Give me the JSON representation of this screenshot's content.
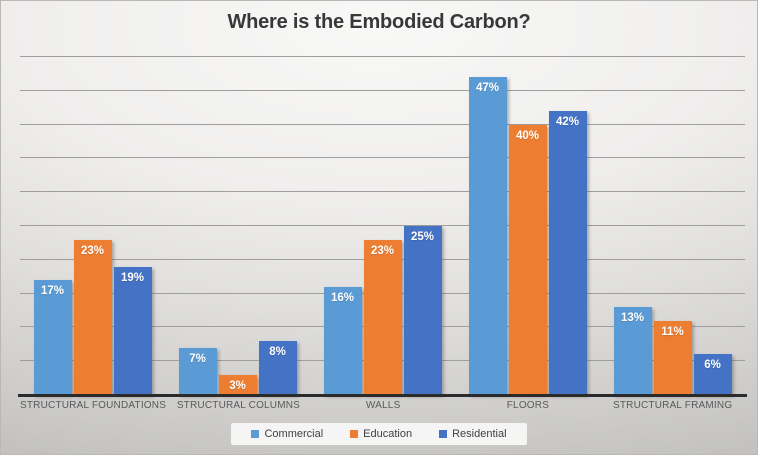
{
  "title": "Where is the Embodied Carbon?",
  "chart_data": {
    "type": "bar",
    "title": "Where is the Embodied Carbon?",
    "categories": [
      "STRUCTURAL FOUNDATIONS",
      "STRUCTURAL COLUMNS",
      "WALLS",
      "FLOORS",
      "STRUCTURAL FRAMING"
    ],
    "series": [
      {
        "name": "Commercial",
        "color": "#5B9BD5",
        "values": [
          17,
          7,
          16,
          47,
          13
        ]
      },
      {
        "name": "Education",
        "color": "#ED7D31",
        "values": [
          23,
          3,
          23,
          40,
          11
        ]
      },
      {
        "name": "Residential",
        "color": "#4472C4",
        "values": [
          19,
          8,
          25,
          42,
          6
        ]
      }
    ],
    "data_labels": [
      "17%",
      "7%",
      "16%",
      "47%",
      "13%",
      "23%",
      "3%",
      "23%",
      "40%",
      "11%",
      "19%",
      "8%",
      "25%",
      "42%",
      "6%"
    ],
    "value_suffix": "%",
    "xlabel": "",
    "ylabel": "",
    "ylim": [
      0,
      50
    ],
    "gridline_step": 5,
    "grid": true,
    "y_axis_labels_visible": false,
    "legend_position": "bottom",
    "legend": [
      "Commercial",
      "Education",
      "Residential"
    ]
  },
  "colors": {
    "grid": "#9f9e9c",
    "axis": "#2b2b2b",
    "category_text": "#595959",
    "title_text": "#383838",
    "data_label_text": "#ffffff",
    "legend_text": "#404040",
    "legend_bg": "#fafafa"
  }
}
